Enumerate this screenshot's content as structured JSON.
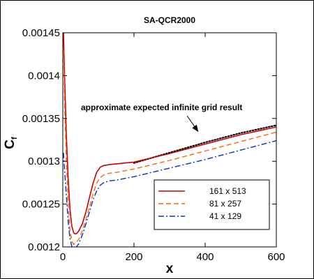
{
  "chart_data": {
    "type": "line",
    "title": "SA-QCR2000",
    "xlabel": "x",
    "ylabel": "C",
    "ylabel_sub": "f",
    "xlim": [
      0,
      600
    ],
    "ylim": [
      0.0012,
      0.00145
    ],
    "x_ticks": [
      {
        "value": 0,
        "label": "0"
      },
      {
        "value": 200,
        "label": "200"
      },
      {
        "value": 400,
        "label": "400"
      },
      {
        "value": 600,
        "label": "600"
      }
    ],
    "y_ticks": [
      {
        "value": 0.0012,
        "label": "0.0012"
      },
      {
        "value": 0.00125,
        "label": "0.00125"
      },
      {
        "value": 0.0013,
        "label": "0.0013"
      },
      {
        "value": 0.00135,
        "label": "0.00135"
      },
      {
        "value": 0.0014,
        "label": "0.0014"
      },
      {
        "value": 0.00145,
        "label": "0.00145"
      }
    ],
    "grid": false,
    "legend_position": "bottom-right",
    "annotation": {
      "text": "approximate expected infinite grid result",
      "arrow_target": {
        "x": 380,
        "y": 0.00133
      }
    },
    "series": [
      {
        "name": "",
        "color": "#000000",
        "style": "dotted",
        "points": [
          [
            200,
            0.001298
          ],
          [
            300,
            0.00131
          ],
          [
            400,
            0.001322
          ],
          [
            500,
            0.001333
          ],
          [
            600,
            0.001342
          ]
        ]
      },
      {
        "name": "161 x 513",
        "color": "#cc0000",
        "style": "solid",
        "points": [
          [
            2,
            0.00145
          ],
          [
            5,
            0.0014
          ],
          [
            10,
            0.00133
          ],
          [
            15,
            0.00128
          ],
          [
            20,
            0.001245
          ],
          [
            25,
            0.001225
          ],
          [
            30,
            0.001217
          ],
          [
            35,
            0.001215
          ],
          [
            40,
            0.001216
          ],
          [
            45,
            0.001219
          ],
          [
            55,
            0.001227
          ],
          [
            65,
            0.001241
          ],
          [
            75,
            0.001258
          ],
          [
            85,
            0.001274
          ],
          [
            95,
            0.001287
          ],
          [
            105,
            0.001293
          ],
          [
            115,
            0.001295
          ],
          [
            130,
            0.001296
          ],
          [
            150,
            0.001297
          ],
          [
            200,
            0.001299
          ],
          [
            300,
            0.001309
          ],
          [
            400,
            0.00132
          ],
          [
            500,
            0.001331
          ],
          [
            600,
            0.00134
          ]
        ]
      },
      {
        "name": "81 x 257",
        "color": "#ff6600",
        "style": "dashed",
        "points": [
          [
            2,
            0.00143
          ],
          [
            5,
            0.00137
          ],
          [
            10,
            0.0013
          ],
          [
            15,
            0.00125
          ],
          [
            20,
            0.00122
          ],
          [
            25,
            0.001207
          ],
          [
            30,
            0.001203
          ],
          [
            35,
            0.001204
          ],
          [
            45,
            0.001209
          ],
          [
            55,
            0.001219
          ],
          [
            65,
            0.001232
          ],
          [
            75,
            0.001247
          ],
          [
            85,
            0.001262
          ],
          [
            95,
            0.001274
          ],
          [
            105,
            0.001281
          ],
          [
            115,
            0.001284
          ],
          [
            130,
            0.001286
          ],
          [
            150,
            0.001287
          ],
          [
            200,
            0.001291
          ],
          [
            300,
            0.001301
          ],
          [
            400,
            0.001312
          ],
          [
            500,
            0.001323
          ],
          [
            600,
            0.001334
          ]
        ]
      },
      {
        "name": "41 x 129",
        "color": "#0033cc",
        "style": "dashdot",
        "points": [
          [
            2,
            0.00131
          ],
          [
            5,
            0.00129
          ],
          [
            10,
            0.00126
          ],
          [
            15,
            0.00123
          ],
          [
            20,
            0.00121
          ],
          [
            25,
            0.001201
          ],
          [
            30,
            0.001197
          ],
          [
            35,
            0.001198
          ],
          [
            45,
            0.001204
          ],
          [
            55,
            0.001214
          ],
          [
            65,
            0.001227
          ],
          [
            75,
            0.001241
          ],
          [
            85,
            0.001255
          ],
          [
            95,
            0.001265
          ],
          [
            105,
            0.001272
          ],
          [
            115,
            0.001275
          ],
          [
            130,
            0.001277
          ],
          [
            150,
            0.001278
          ],
          [
            200,
            0.001282
          ],
          [
            300,
            0.001292
          ],
          [
            400,
            0.001302
          ],
          [
            500,
            0.001313
          ],
          [
            600,
            0.001324
          ]
        ]
      }
    ]
  }
}
